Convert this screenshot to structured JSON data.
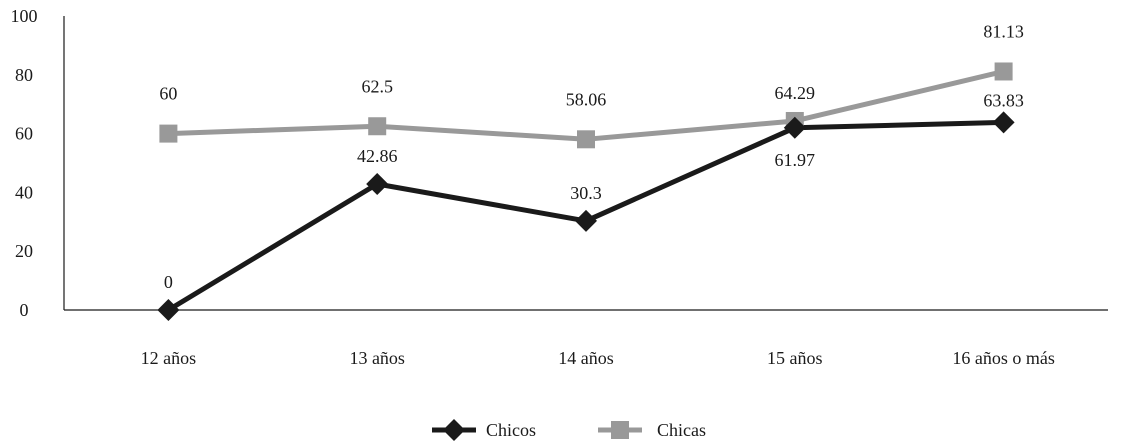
{
  "chart_data": {
    "type": "line",
    "title": "",
    "xlabel": "",
    "ylabel": "",
    "categories": [
      "12 años",
      "13 años",
      "14 años",
      "15 años",
      "16 años o más"
    ],
    "ylim": [
      0,
      100
    ],
    "yticks": [
      0,
      20,
      40,
      60,
      80,
      100
    ],
    "grid": false,
    "legend_position": "bottom-center",
    "series": [
      {
        "name": "Chicos",
        "values": [
          0,
          42.86,
          30.3,
          61.97,
          63.83
        ],
        "labels": [
          "0",
          "42.86",
          "30.3",
          "61.97",
          "63.83"
        ],
        "color": "#1a1a1a",
        "marker": "diamond"
      },
      {
        "name": "Chicas",
        "values": [
          60,
          62.5,
          58.06,
          64.29,
          81.13
        ],
        "labels": [
          "60",
          "62.5",
          "58.06",
          "64.29",
          "81.13"
        ],
        "color": "#999999",
        "marker": "square"
      }
    ]
  }
}
